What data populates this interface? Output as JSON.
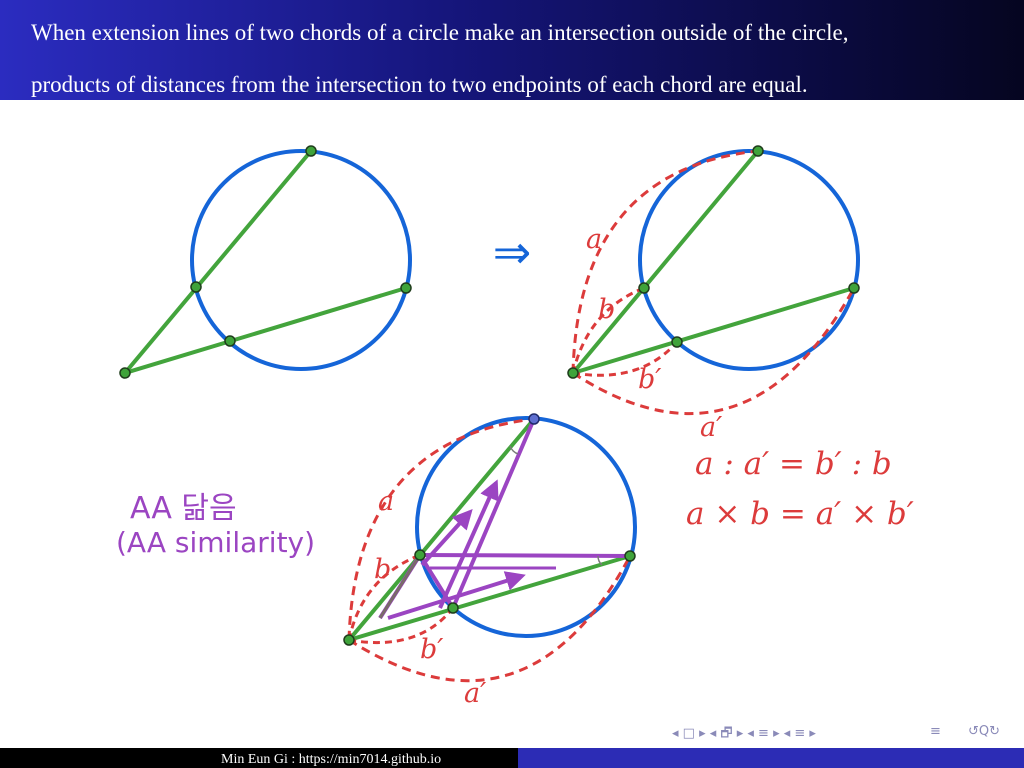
{
  "header": {
    "line1": "When extension lines of two chords of a circle make an intersection outside of the circle,",
    "line2": "products of distances from the intersection to two endpoints of each chord are equal."
  },
  "figure": {
    "arrow": "⇒",
    "label_a": "a",
    "label_b": "b",
    "label_b_prime": "b′",
    "label_a_prime": "a′",
    "similarity_korean": "AA 닮음",
    "similarity_english": "(AA similarity)",
    "equation_ratio": "a : a′ = b′ : b",
    "equation_product": "a × b = a′ × b′"
  },
  "colors": {
    "circle": "#1565d8",
    "chord": "#43a43c",
    "measure": "#dc3b3b",
    "triangle": "#9b45c2",
    "point_fill": "#3fa33a",
    "header_start": "#2b2cc0",
    "header_end": "#050520"
  },
  "navigation": {
    "frame_icons": "◂ □ ▸ ◂ 🗗 ▸ ◂ ≡ ▸ ◂ ≡ ▸",
    "align_icon": "≡",
    "search_icons": "↺Q↻"
  },
  "footer": {
    "author_text": "Min Eun Gi : https://min7014.github.io"
  }
}
